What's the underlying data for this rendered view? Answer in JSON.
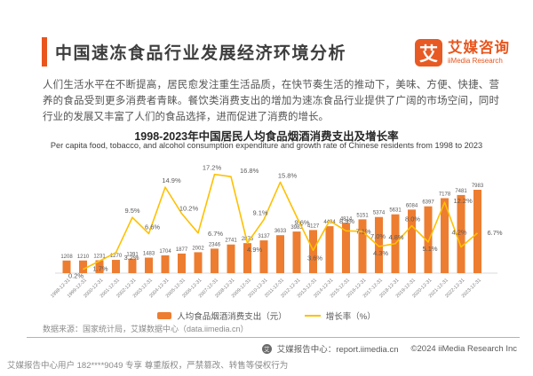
{
  "header": {
    "title": "中国速冻食品行业发展经济环境分析",
    "logo": {
      "mark": "艾",
      "name_cn": "艾媒咨询",
      "name_en": "iiMedia Research"
    }
  },
  "intro": "人们生活水平在不断提高，居民愈发注重生活品质，在快节奏生活的推动下，美味、方便、快捷、营养的食品受到更多消费者青睐。餐饮类消费支出的增加为速冻食品行业提供了广阔的市场空间，同时行业的发展又丰富了人们的食品选择，进而促进了消费的增长。",
  "chart_data": {
    "type": "bar",
    "title": "1998-2023年中国居民人均食品烟酒消费支出及增长率",
    "subtitle": "Per capita food, tobacco, and alcohol consumption expenditure and growth rate of Chinese residents from 1998 to 2023",
    "categories": [
      "1998-12-31",
      "1999-12-31",
      "2000-12-31",
      "2001-12-31",
      "2002-12-31",
      "2003-12-31",
      "2004-12-31",
      "2005-12-31",
      "2006-12-31",
      "2007-12-31",
      "2008-12-31",
      "2009-12-31",
      "2010-12-31",
      "2011-12-31",
      "2012-12-31",
      "2013-12-31",
      "2014-12-31",
      "2015-12-31",
      "2016-12-31",
      "2017-12-31",
      "2018-12-31",
      "2019-12-31",
      "2020-12-31",
      "2021-12-31",
      "2022-12-31",
      "2023-12-31"
    ],
    "series": [
      {
        "name": "人均食品烟酒消费支出（元）",
        "type": "bar",
        "color": "#ED7D31",
        "values": [
          1208,
          1210,
          1231,
          1270,
          1391,
          1483,
          1704,
          1877,
          2002,
          2346,
          2741,
          2875,
          3137,
          3633,
          3983,
          4127,
          4494,
          4814,
          5151,
          5374,
          5631,
          6084,
          6397,
          7178,
          7481,
          7983
        ]
      },
      {
        "name": "增长率（%）",
        "type": "line",
        "color": "#FFC000",
        "values": [
          null,
          0.2,
          1.7,
          3.2,
          9.5,
          6.6,
          14.9,
          10.2,
          6.7,
          17.2,
          16.8,
          4.9,
          9.1,
          15.8,
          9.6,
          3.6,
          8.9,
          7.1,
          7.0,
          4.3,
          4.8,
          8.0,
          5.1,
          12.2,
          4.2,
          6.7
        ]
      }
    ],
    "ylim_bar": [
      0,
      8000
    ],
    "ylim_pct": [
      0,
      18
    ],
    "y_axis_visible": false,
    "grid": false,
    "legend_position": "bottom",
    "label_color": "#595959",
    "tick_color": "#7f7f7f"
  },
  "source_note": "数据来源：国家统计局，艾媒数据中心（data.iimedia.cn）",
  "footer": {
    "report_center": "艾媒报告中心：report.iimedia.cn",
    "copyright": "©2024  iiMedia Research Inc"
  },
  "watermark": "艾媒报告中心用户 182****9049 专享 尊重版权，严禁篡改、转售等侵权行为"
}
